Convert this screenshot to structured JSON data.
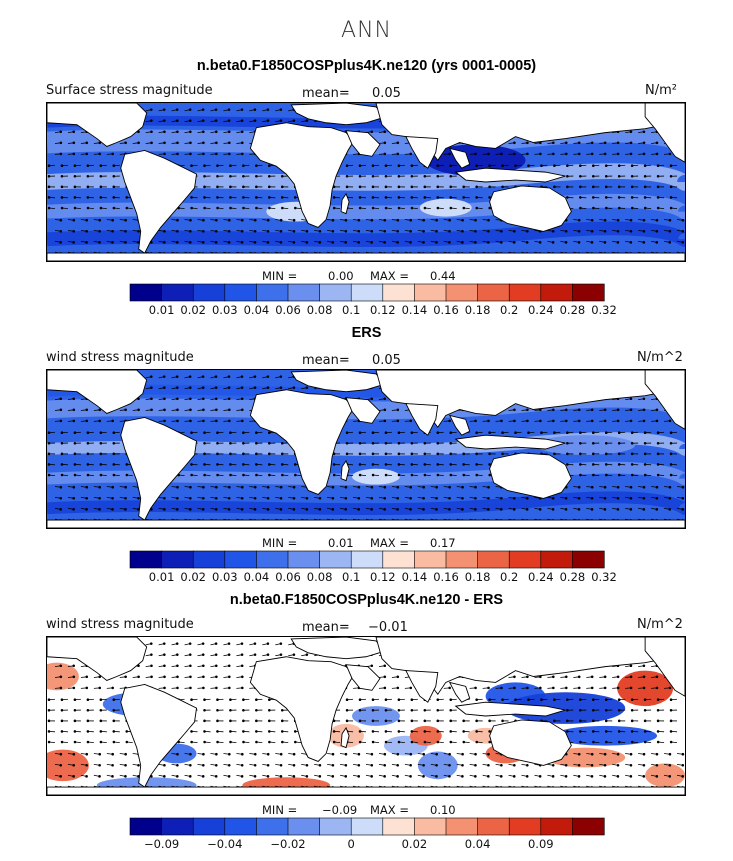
{
  "figure": {
    "season_title": "ANN",
    "colors": {
      "palette_seq": [
        "#00008c",
        "#0d1fb7",
        "#1640d8",
        "#2155e8",
        "#3d70ea",
        "#6a8fee",
        "#9cb6f4",
        "#cddcf9",
        "#fde2d4",
        "#f9bba2",
        "#f39172",
        "#ec6446",
        "#e23d22",
        "#c21b0c",
        "#8b0000"
      ],
      "land": "#ffffff",
      "arrow": "#000000"
    }
  },
  "panels": [
    {
      "title": "n.beta0.F1850COSPplus4K.ne120 (yrs 0001-0005)",
      "left_label": "Surface stress magnitude",
      "mean_label": "mean=",
      "mean_value": "0.05",
      "units": "N/m²",
      "min_label": "MIN =",
      "min_value": "0.00",
      "max_label": "MAX =",
      "max_value": "0.44",
      "colorbar_ticks": [
        "0.01",
        "0.02",
        "0.03",
        "0.04",
        "0.06",
        "0.08",
        "0.1",
        "0.12",
        "0.14",
        "0.16",
        "0.18",
        "0.2",
        "0.24",
        "0.28",
        "0.32"
      ],
      "variant": "model"
    },
    {
      "title": "ERS",
      "left_label": "wind stress magnitude",
      "mean_label": "mean=",
      "mean_value": "0.05",
      "units": "N/m^2",
      "min_label": "MIN =",
      "min_value": "0.01",
      "max_label": "MAX =",
      "max_value": "0.17",
      "colorbar_ticks": [
        "0.01",
        "0.02",
        "0.03",
        "0.04",
        "0.06",
        "0.08",
        "0.1",
        "0.12",
        "0.14",
        "0.16",
        "0.18",
        "0.2",
        "0.24",
        "0.28",
        "0.32"
      ],
      "variant": "obs"
    },
    {
      "title": "n.beta0.F1850COSPplus4K.ne120 - ERS",
      "left_label": "wind stress magnitude",
      "mean_label": "mean=",
      "mean_value": "−0.01",
      "units": "N/m^2",
      "min_label": "MIN =",
      "min_value": "−0.09",
      "max_label": "MAX =",
      "max_value": "0.10",
      "colorbar_ticks": [
        "−0.09",
        "−0.04",
        "−0.02",
        "0",
        "0.02",
        "0.04",
        "0.09"
      ],
      "variant": "diff"
    }
  ]
}
